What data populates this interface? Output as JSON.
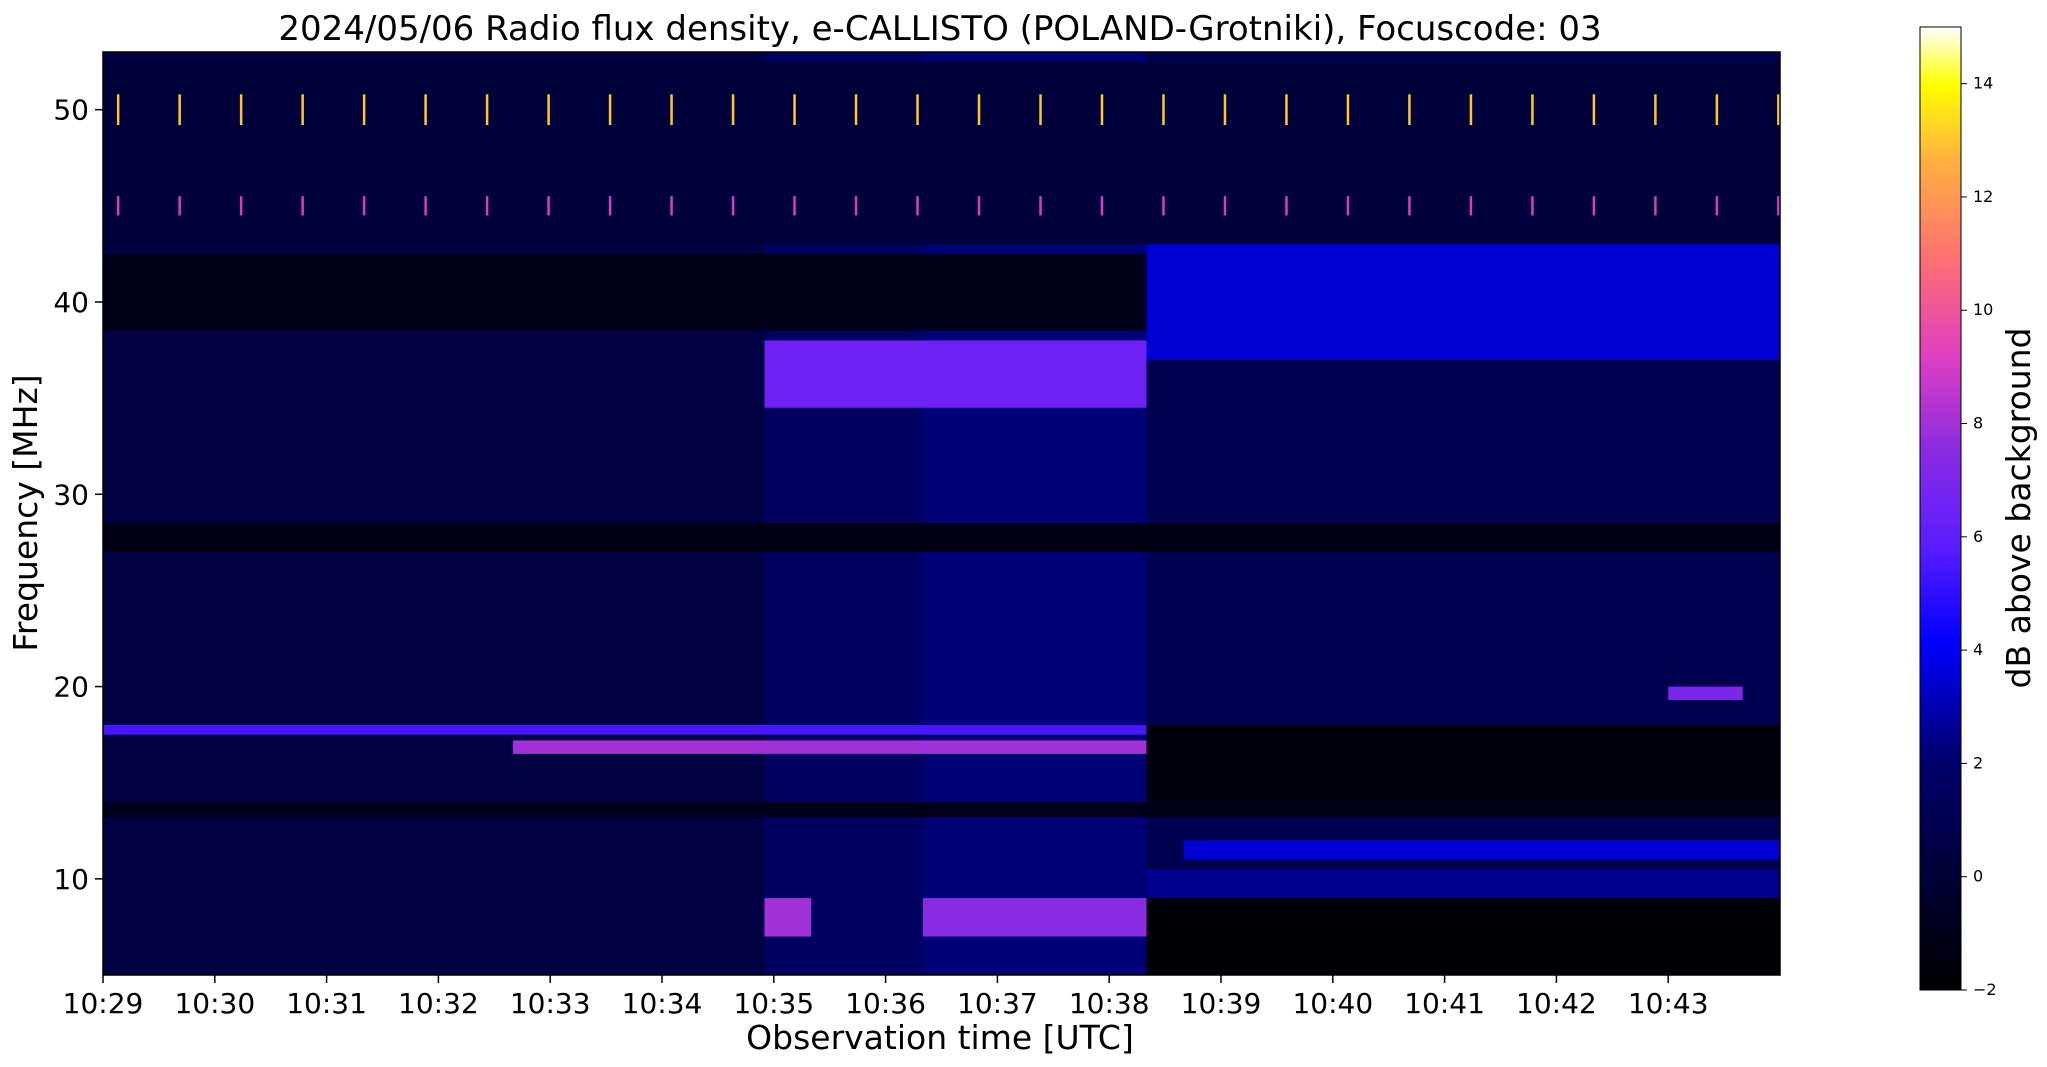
{
  "chart_data": {
    "type": "heatmap",
    "title": "2024/05/06  Radio flux density, e-CALLISTO (POLAND-Grotniki), Focuscode: 03",
    "xlabel": "Observation time [UTC]",
    "ylabel": "Frequency [MHz]",
    "x_ticks": [
      "10:29",
      "10:30",
      "10:31",
      "10:32",
      "10:33",
      "10:34",
      "10:35",
      "10:36",
      "10:37",
      "10:38",
      "10:39",
      "10:40",
      "10:41",
      "10:42",
      "10:43"
    ],
    "x_start": "10:29",
    "x_end": "10:44",
    "ylim": [
      5,
      53
    ],
    "y_ticks": [
      10,
      20,
      30,
      40,
      50
    ],
    "colorbar": {
      "label": "dB above background",
      "range": [
        -2,
        15
      ],
      "ticks": [
        -2,
        0,
        2,
        4,
        6,
        8,
        10,
        12,
        14
      ],
      "colormap": "gnuplot2"
    },
    "segments": [
      {
        "start": "10:29",
        "end": "10:34:55",
        "level": 0.5
      },
      {
        "start": "10:34:55",
        "end": "10:36:20",
        "level": 1.6
      },
      {
        "start": "10:36:20",
        "end": "10:38:20",
        "level": 2.2
      },
      {
        "start": "10:38:20",
        "end": "10:44",
        "level": 1.0
      }
    ],
    "bands": [
      {
        "freq_min": 43.0,
        "freq_max": 52.5,
        "level": 0.2
      },
      {
        "freq_min": 38.5,
        "freq_max": 42.5,
        "level": -1.0
      },
      {
        "freq_min": 37.0,
        "freq_max": 43.0,
        "level": 3.5,
        "start": "10:38:20",
        "end": "10:44"
      },
      {
        "freq_min": 34.5,
        "freq_max": 38.0,
        "level": 6.5,
        "start": "10:34:55",
        "end": "10:38:20"
      },
      {
        "freq_min": 27.0,
        "freq_max": 28.5,
        "level": -1.2
      },
      {
        "freq_min": 17.5,
        "freq_max": 18.0,
        "level": 5.5,
        "start": "10:29",
        "end": "10:38:20"
      },
      {
        "freq_min": 16.5,
        "freq_max": 17.2,
        "level": 8.0,
        "start": "10:32:40",
        "end": "10:38:20"
      },
      {
        "freq_min": 14.0,
        "freq_max": 18.0,
        "level": -1.5,
        "start": "10:38:20",
        "end": "10:44"
      },
      {
        "freq_min": 13.2,
        "freq_max": 14.0,
        "level": -1.0
      },
      {
        "freq_min": 11.0,
        "freq_max": 12.0,
        "level": 3.5,
        "start": "10:38:40",
        "end": "10:44"
      },
      {
        "freq_min": 9.0,
        "freq_max": 10.5,
        "level": 2.5,
        "start": "10:38:20",
        "end": "10:44"
      },
      {
        "freq_min": 5.0,
        "freq_max": 9.0,
        "level": -1.8,
        "start": "10:38:20",
        "end": "10:44"
      },
      {
        "freq_min": 7.0,
        "freq_max": 9.0,
        "level": 8.0,
        "start": "10:34:55",
        "end": "10:35:20"
      },
      {
        "freq_min": 7.0,
        "freq_max": 9.0,
        "level": 7.5,
        "start": "10:36:20",
        "end": "10:38:20"
      },
      {
        "freq_min": 19.3,
        "freq_max": 20.0,
        "level": 7.0,
        "start": "10:43:00",
        "end": "10:43:40"
      }
    ],
    "spikes": {
      "interval_s": 33,
      "freqs": [
        50.0,
        45.0
      ],
      "level": 13
    },
    "legend": "none",
    "grid": false
  }
}
